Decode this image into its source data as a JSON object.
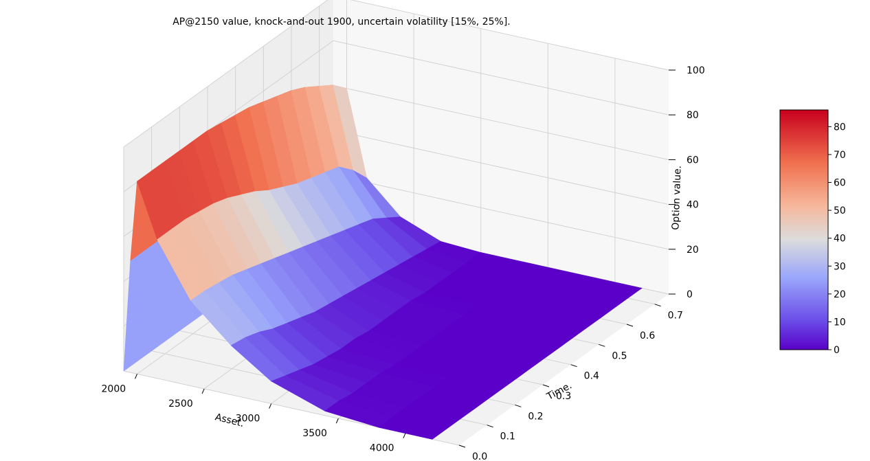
{
  "chart_data": {
    "type": "surface3d",
    "title": "AP@2150 value, knock-and-out 1900, uncertain volatility [15%, 25%].",
    "xlabel": "Asset.",
    "ylabel": "Time.",
    "zlabel": "Option value.",
    "xlim": [
      1900,
      4400
    ],
    "ylim": [
      0.0,
      0.75
    ],
    "zlim": [
      0,
      100
    ],
    "x_ticks": [
      "2000",
      "2500",
      "3000",
      "3500",
      "4000"
    ],
    "y_ticks": [
      "0.0",
      "0.1",
      "0.2",
      "0.3",
      "0.4",
      "0.5",
      "0.6",
      "0.7"
    ],
    "z_ticks": [
      "0",
      "20",
      "40",
      "60",
      "80",
      "100"
    ],
    "grid": true,
    "colormap": "coolwarm",
    "colorbar": {
      "ticks": [
        "0",
        "10",
        "20",
        "30",
        "40",
        "50",
        "60",
        "70",
        "80"
      ],
      "range": [
        0,
        86
      ]
    },
    "asset_grid": [
      1900,
      1950,
      2000,
      2150,
      2400,
      2700,
      3000,
      3400,
      3800,
      4200
    ],
    "time_grid": [
      0.0,
      0.05,
      0.1,
      0.15,
      0.2,
      0.25,
      0.3,
      0.35,
      0.4,
      0.45,
      0.5,
      0.55,
      0.6,
      0.65,
      0.7,
      0.75
    ],
    "values": [
      [
        0,
        0,
        0,
        0,
        0,
        0,
        0,
        0,
        0,
        0,
        0,
        0,
        0,
        0,
        0,
        0
      ],
      [
        50,
        50,
        50,
        50,
        50,
        50,
        50,
        50,
        50,
        50,
        50,
        50,
        50,
        50,
        50,
        50
      ],
      [
        86,
        86,
        86,
        86,
        86,
        86,
        85,
        84,
        83,
        81,
        79,
        77,
        74,
        70,
        66,
        60
      ],
      [
        62,
        62,
        62,
        61,
        60,
        58,
        55,
        52,
        48,
        45,
        42,
        40,
        38,
        36,
        30,
        22
      ],
      [
        38,
        38,
        37,
        36,
        34,
        32,
        30,
        28,
        26,
        24,
        22,
        20,
        18,
        16,
        12,
        8
      ],
      [
        22,
        21,
        19,
        16,
        14,
        12,
        10,
        9,
        8,
        7,
        6,
        5,
        4,
        3,
        2,
        1
      ],
      [
        10,
        8,
        6,
        4,
        3,
        2,
        2,
        1,
        1,
        1,
        1,
        0,
        0,
        0,
        0,
        0
      ],
      [
        2,
        2,
        1,
        1,
        1,
        0,
        0,
        0,
        0,
        0,
        0,
        0,
        0,
        0,
        0,
        0
      ],
      [
        0,
        0,
        0,
        0,
        0,
        0,
        0,
        0,
        0,
        0,
        0,
        0,
        0,
        0,
        0,
        0
      ],
      [
        0,
        0,
        0,
        0,
        0,
        0,
        0,
        0,
        0,
        0,
        0,
        0,
        0,
        0,
        0,
        0
      ]
    ]
  }
}
